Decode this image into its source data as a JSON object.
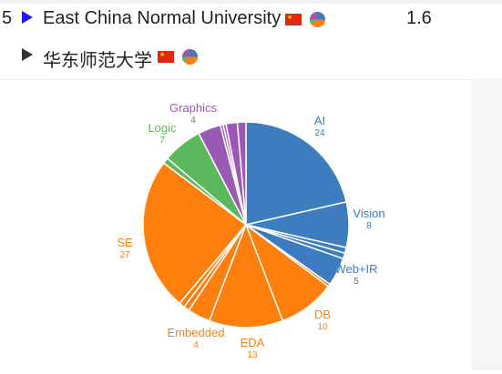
{
  "rows": [
    {
      "rank": "5",
      "name": "East China Normal University",
      "score": "1.6"
    },
    {
      "rank": "",
      "name": "华东师范大学",
      "score": ""
    }
  ],
  "icons": {
    "expand": "triangle-right-icon",
    "flag": "china-flag-icon",
    "pie": "pie-chart-icon"
  },
  "colors": {
    "ai": "#3d7dbf",
    "se": "#ff7f0e",
    "logic": "#5cb85c",
    "graphics": "#9b59b6"
  },
  "chart_data": {
    "type": "pie",
    "slices": [
      {
        "label": "AI",
        "value": 24,
        "color": "#3d7dbf",
        "labeled": true
      },
      {
        "label": "Vision",
        "value": 8,
        "color": "#3d7dbf",
        "labeled": true
      },
      {
        "label": "",
        "value": 1,
        "color": "#3d7dbf",
        "labeled": false
      },
      {
        "label": "",
        "value": 1,
        "color": "#3d7dbf",
        "labeled": false
      },
      {
        "label": "Web+IR",
        "value": 5,
        "color": "#3d7dbf",
        "labeled": true
      },
      {
        "label": "",
        "value": 0.5,
        "color": "#ff7f0e",
        "labeled": false
      },
      {
        "label": "DB",
        "value": 10,
        "color": "#ff7f0e",
        "labeled": true
      },
      {
        "label": "EDA",
        "value": 13,
        "color": "#ff7f0e",
        "labeled": true
      },
      {
        "label": "Embedded",
        "value": 4,
        "color": "#ff7f0e",
        "labeled": true
      },
      {
        "label": "",
        "value": 1,
        "color": "#ff7f0e",
        "labeled": false
      },
      {
        "label": "",
        "value": 1,
        "color": "#ff7f0e",
        "labeled": false
      },
      {
        "label": "SE",
        "value": 27,
        "color": "#ff7f0e",
        "labeled": true
      },
      {
        "label": "",
        "value": 1,
        "color": "#5cb85c",
        "labeled": false
      },
      {
        "label": "Logic",
        "value": 7,
        "color": "#5cb85c",
        "labeled": true
      },
      {
        "label": "Graphics",
        "value": 4,
        "color": "#9b59b6",
        "labeled": true
      },
      {
        "label": "",
        "value": 0.5,
        "color": "#9b59b6",
        "labeled": false
      },
      {
        "label": "",
        "value": 0.5,
        "color": "#9b59b6",
        "labeled": false
      },
      {
        "label": "",
        "value": 2,
        "color": "#9b59b6",
        "labeled": false
      },
      {
        "label": "",
        "value": 1.5,
        "color": "#9b59b6",
        "labeled": false
      }
    ]
  }
}
